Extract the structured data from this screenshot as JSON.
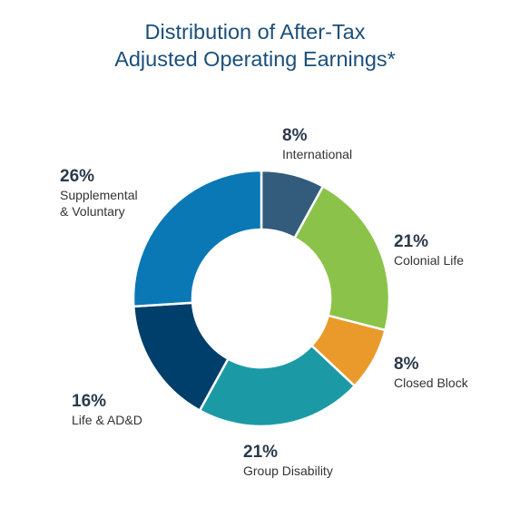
{
  "chart_data": {
    "type": "pie",
    "donut": true,
    "title_lines": [
      "Distribution of After-Tax",
      "Adjusted Operating Earnings*"
    ],
    "slices": [
      {
        "label": "International",
        "value": 8,
        "value_label": "8%",
        "color": "#335c7c"
      },
      {
        "label": "Colonial Life",
        "value": 21,
        "value_label": "21%",
        "color": "#8bc34a"
      },
      {
        "label": "Closed Block",
        "value": 8,
        "value_label": "8%",
        "color": "#ea9a2b"
      },
      {
        "label": "Group Disability",
        "value": 21,
        "value_label": "21%",
        "color": "#1b9aa6"
      },
      {
        "label": "Life & AD&D",
        "value": 16,
        "value_label": "16%",
        "color": "#003e6b"
      },
      {
        "label": "Supplemental & Voluntary",
        "label_lines": [
          "Supplemental",
          "& Voluntary"
        ],
        "value": 26,
        "value_label": "26%",
        "color": "#0a78b5"
      }
    ]
  }
}
